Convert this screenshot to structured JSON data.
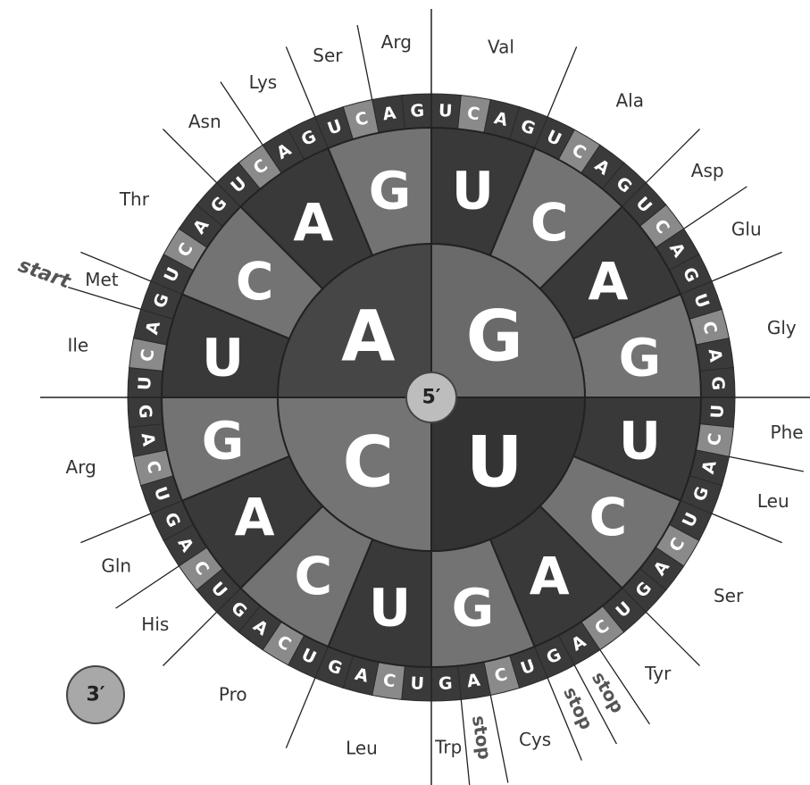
{
  "center_label": "5′",
  "end_label": "3′",
  "inner_ring": [
    "G",
    "U",
    "C",
    "A"
  ],
  "middle_ring": [
    "U",
    "C",
    "A",
    "G",
    "U",
    "C",
    "A",
    "G",
    "U",
    "C",
    "A",
    "G",
    "U",
    "C",
    "A",
    "G"
  ],
  "outer_ring": [
    "U",
    "C",
    "A",
    "G",
    "U",
    "C",
    "A",
    "G",
    "U",
    "C",
    "A",
    "G",
    "U",
    "C",
    "A",
    "G",
    "U",
    "C",
    "A",
    "G",
    "U",
    "C",
    "A",
    "G",
    "U",
    "C",
    "A",
    "G",
    "U",
    "C",
    "A",
    "G",
    "U",
    "C",
    "A",
    "G",
    "U",
    "C",
    "A",
    "G",
    "U",
    "C",
    "A",
    "G",
    "U",
    "C",
    "A",
    "G",
    "U",
    "C",
    "A",
    "G",
    "U",
    "C",
    "A",
    "G",
    "U",
    "C",
    "A",
    "G",
    "U",
    "C",
    "A",
    "G"
  ],
  "amino_acids": [
    "Val",
    "Ala",
    "Asp",
    "Glu",
    "Gly",
    "Phe",
    "Leu",
    "Ser",
    "Tyr",
    "stop",
    "stop",
    "Cys",
    "stop",
    "Trp",
    "Leu",
    "Pro",
    "His",
    "Gln",
    "Arg",
    "Ile",
    "Met",
    "Thr",
    "Asn",
    "Lys",
    "Ser",
    "Arg"
  ],
  "start_label": "start"
}
